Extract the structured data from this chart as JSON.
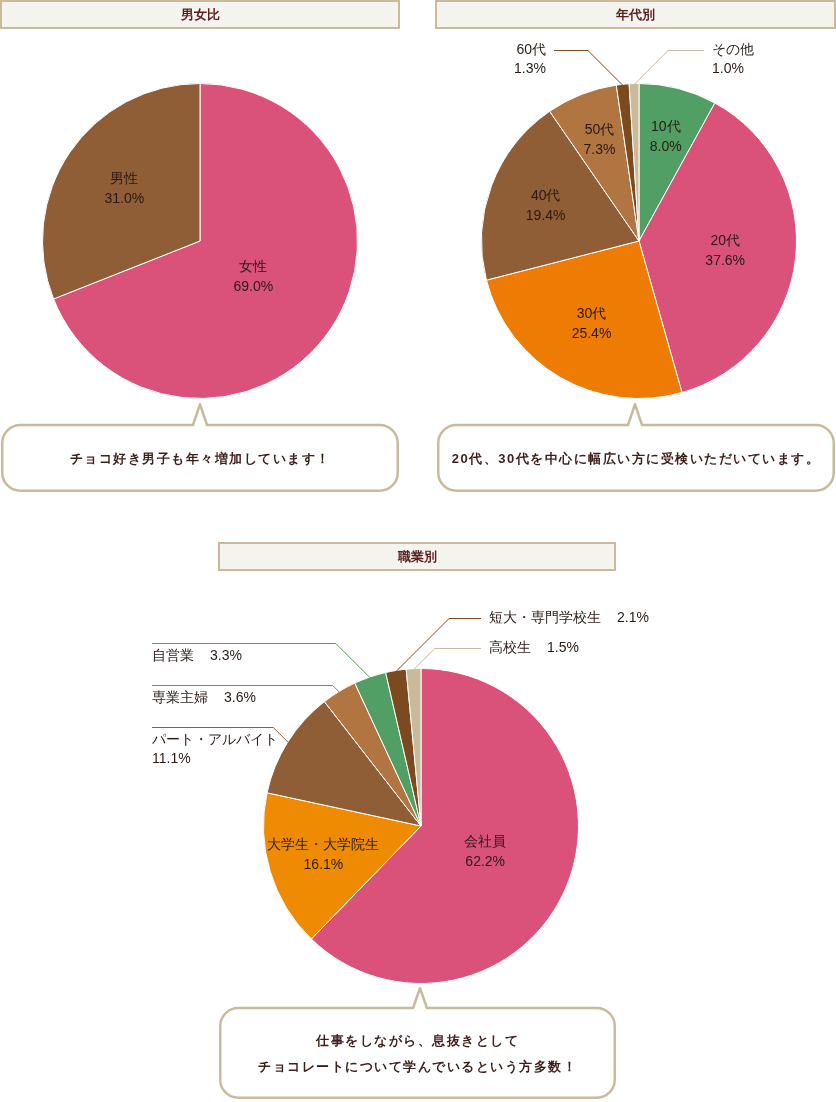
{
  "chart_data": [
    {
      "type": "pie",
      "title": "男女比",
      "categories": [
        "女性",
        "男性"
      ],
      "values": [
        69.0,
        31.0
      ],
      "colors": [
        "#da527a",
        "#8f5e36"
      ],
      "value_labels": [
        "69.0%",
        "31.0%"
      ],
      "annotations": [
        "チョコ好き男子も年々増加しています！"
      ]
    },
    {
      "type": "pie",
      "title": "年代別",
      "categories": [
        "10代",
        "20代",
        "30代",
        "40代",
        "50代",
        "60代",
        "その他"
      ],
      "values": [
        8.0,
        37.6,
        25.4,
        19.4,
        7.3,
        1.3,
        1.0
      ],
      "colors": [
        "#529f65",
        "#da527a",
        "#ee7b04",
        "#8f5e36",
        "#b17542",
        "#7b4a1e",
        "#c9ba9b"
      ],
      "value_labels": [
        "8.0%",
        "37.6%",
        "25.4%",
        "19.4%",
        "7.3%",
        "1.3%",
        "1.0%"
      ],
      "annotations": [
        "20代、30代を中心に幅広い方に受検いただいています。"
      ]
    },
    {
      "type": "pie",
      "title": "職業別",
      "categories": [
        "会社員",
        "大学生・大学院生",
        "パート・アルバイト",
        "専業主婦",
        "自営業",
        "短大・専門学校生",
        "高校生"
      ],
      "values": [
        62.2,
        16.1,
        11.1,
        3.6,
        3.3,
        2.1,
        1.5
      ],
      "colors": [
        "#da527a",
        "#ef8b03",
        "#8f5e36",
        "#b17542",
        "#529f65",
        "#7b4a1e",
        "#c9ba9b"
      ],
      "value_labels": [
        "62.2%",
        "16.1%",
        "11.1%",
        "3.6%",
        "3.3%",
        "2.1%",
        "1.5%"
      ],
      "annotations": [
        "仕事をしながら、息抜きとして",
        "チョコレートについて学んでいるという方多数！"
      ]
    }
  ]
}
